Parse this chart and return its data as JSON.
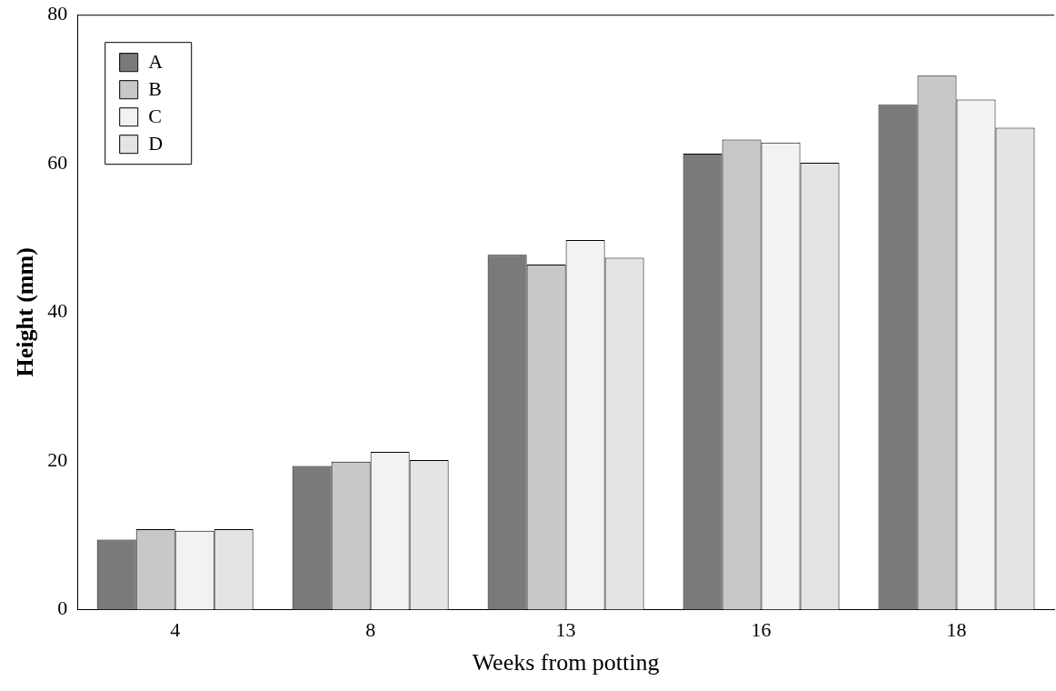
{
  "chart_data": {
    "type": "bar",
    "xlabel": "Weeks from potting",
    "ylabel": "Height (mm)",
    "categories": [
      "4",
      "8",
      "13",
      "16",
      "18"
    ],
    "series": [
      {
        "name": "A",
        "color": "#7a7a7a",
        "values": [
          9.4,
          19.3,
          47.7,
          61.3,
          67.9
        ]
      },
      {
        "name": "B",
        "color": "#c8c8c8",
        "values": [
          10.8,
          19.9,
          46.4,
          63.2,
          71.8
        ]
      },
      {
        "name": "C",
        "color": "#f2f2f2",
        "values": [
          10.6,
          21.2,
          49.7,
          62.8,
          68.6
        ]
      },
      {
        "name": "D",
        "color": "#e4e4e4",
        "values": [
          10.8,
          20.1,
          47.3,
          60.1,
          64.8
        ]
      }
    ],
    "ylim": [
      0,
      80
    ],
    "yticks": [
      0,
      20,
      40,
      60,
      80
    ],
    "grid": false,
    "legend": "top left"
  }
}
